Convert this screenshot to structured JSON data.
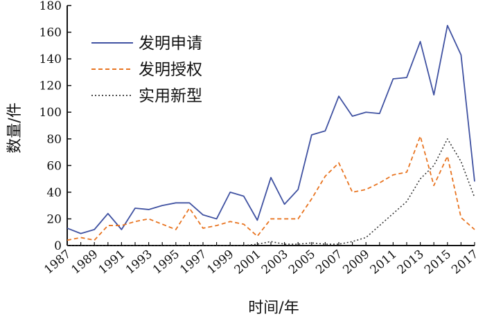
{
  "chart_data": {
    "type": "line",
    "xlabel": "时间/年",
    "ylabel": "数量/件",
    "ylim": [
      0,
      180
    ],
    "xlim": [
      1987,
      2017
    ],
    "yticks": [
      0,
      20,
      40,
      60,
      80,
      100,
      120,
      140,
      160,
      180
    ],
    "xticks": [
      1987,
      1989,
      1991,
      1993,
      1995,
      1997,
      1999,
      2001,
      2003,
      2005,
      2007,
      2009,
      2011,
      2013,
      2015,
      2017
    ],
    "x": [
      1987,
      1988,
      1989,
      1990,
      1991,
      1992,
      1993,
      1994,
      1995,
      1996,
      1997,
      1998,
      1999,
      2000,
      2001,
      2002,
      2003,
      2004,
      2005,
      2006,
      2007,
      2008,
      2009,
      2010,
      2011,
      2012,
      2013,
      2014,
      2015,
      2016,
      2017
    ],
    "series": [
      {
        "name": "发明申请",
        "color": "#3f51a1",
        "dash": "solid",
        "values": [
          13,
          9,
          12,
          24,
          12,
          28,
          27,
          30,
          32,
          32,
          23,
          20,
          40,
          37,
          19,
          51,
          31,
          42,
          83,
          86,
          112,
          97,
          100,
          99,
          125,
          126,
          153,
          113,
          165,
          143,
          48
        ]
      },
      {
        "name": "发明授权",
        "color": "#e8731f",
        "dash": "dashed",
        "values": [
          4,
          6,
          4,
          15,
          15,
          18,
          20,
          16,
          12,
          28,
          13,
          15,
          18,
          16,
          7,
          20,
          20,
          20,
          35,
          52,
          62,
          40,
          42,
          47,
          53,
          55,
          82,
          45,
          67,
          21,
          12
        ]
      },
      {
        "name": "实用新型",
        "color": "#333333",
        "dash": "dotted",
        "values": [
          0,
          0,
          0,
          0,
          0,
          0,
          0,
          0,
          0,
          0,
          0,
          0,
          0,
          0,
          1,
          3,
          1,
          1,
          2,
          1,
          1,
          3,
          6,
          15,
          24,
          33,
          50,
          60,
          80,
          63,
          36
        ]
      }
    ],
    "legend_position": "top-left",
    "grid": false
  }
}
